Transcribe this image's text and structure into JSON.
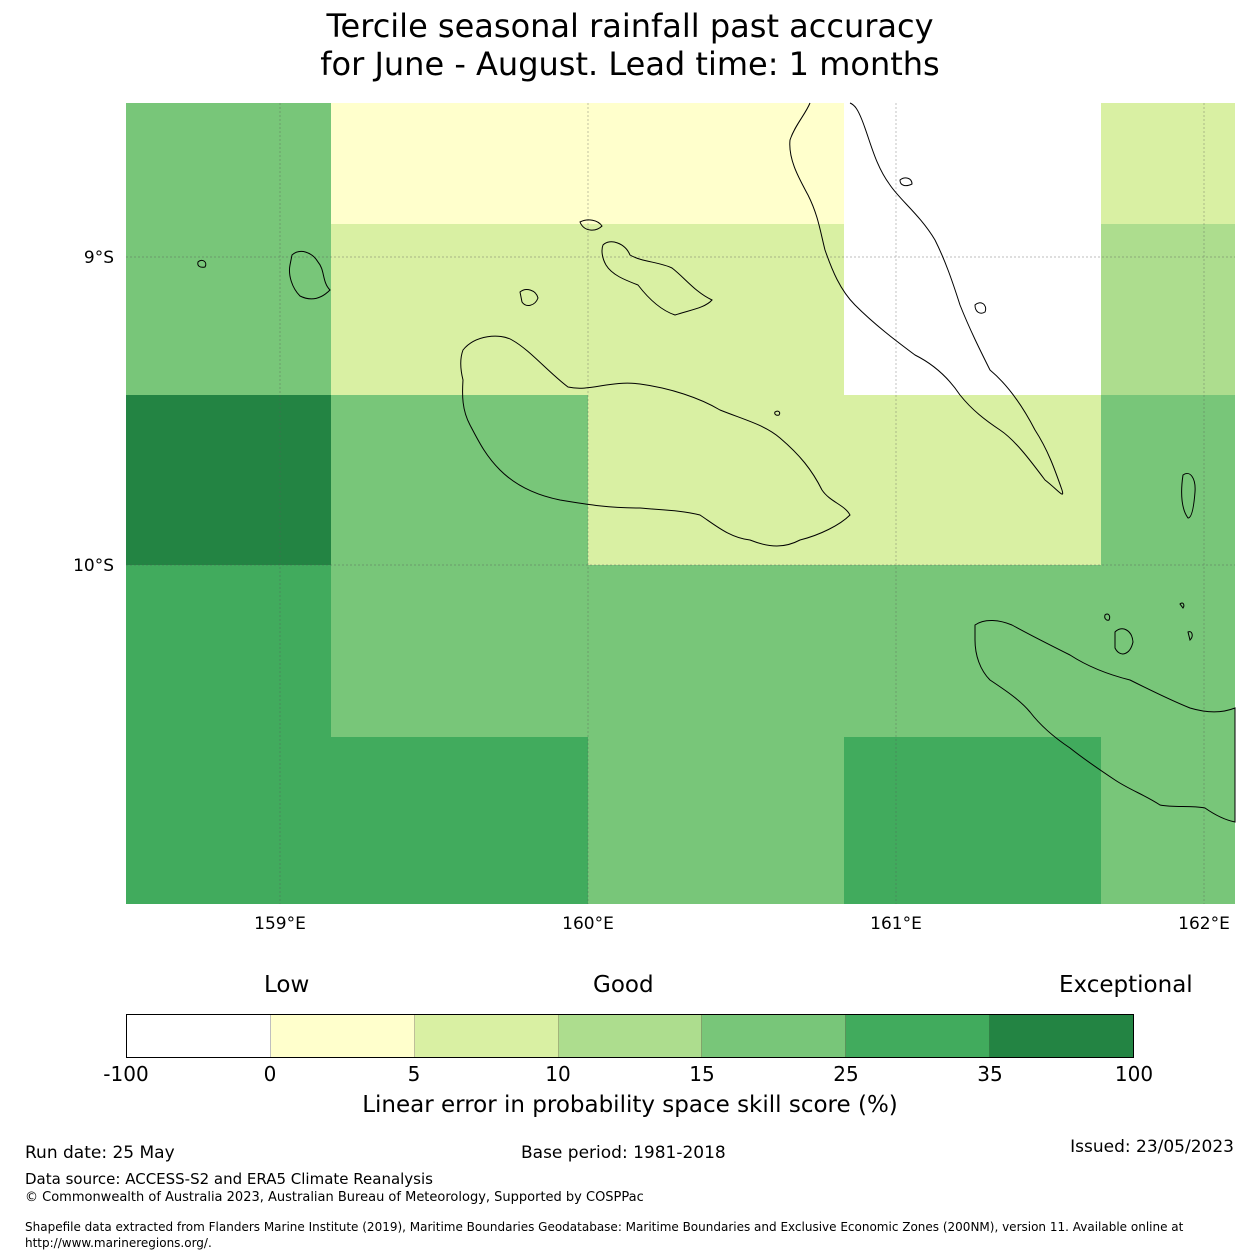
{
  "title_line1": "Tercile seasonal rainfall past accuracy",
  "title_line2": "for June - August. Lead time: 1 months",
  "map": {
    "lat_labels": [
      "9°S",
      "10°S"
    ],
    "lon_labels": [
      "159°E",
      "160°E",
      "161°E",
      "162°E"
    ]
  },
  "colorbar": {
    "categories": [
      "Low",
      "Good",
      "Exceptional"
    ],
    "ticks": [
      "-100",
      "0",
      "5",
      "10",
      "15",
      "25",
      "35",
      "100"
    ],
    "colors": [
      "#ffffff",
      "#ffffcc",
      "#d9f0a3",
      "#addd8e",
      "#78c679",
      "#41ab5d",
      "#238443"
    ],
    "label": "Linear error in probability space skill score (%)"
  },
  "footer": {
    "run_date": "Run date: 25 May",
    "base_period": "Base period: 1981-2018",
    "issued": "Issued: 23/05/2023",
    "data_source": "Data source: ACCESS-S2 and ERA5 Climate Reanalysis",
    "copyright": "© Commonwealth of Australia 2023, Australian Bureau of Meteorology, Supported by COSPPac",
    "shapefile_line1": "Shapefile data extracted from Flanders Marine Institute (2019), Maritime Boundaries Geodatabase: Maritime Boundaries and Exclusive Economic Zones (200NM), version 11. Available online at",
    "shapefile_line2": "http://www.marineregions.org/."
  }
}
